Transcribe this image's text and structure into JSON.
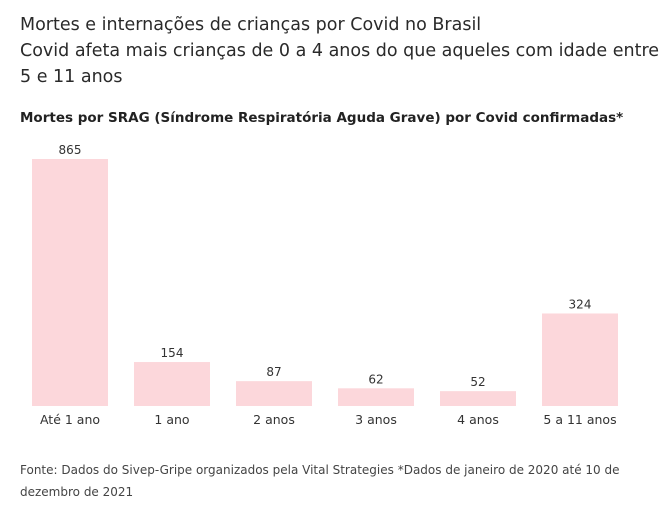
{
  "header": {
    "title": "Mortes e internações de crianças por Covid no Brasil",
    "subtitle": "Covid afeta mais crianças de 0 a 4 anos do que aqueles com idade entre 5 e 11 anos"
  },
  "chart_data": {
    "type": "bar",
    "title": "Mortes por SRAG (Síndrome Respiratória Aguda Grave) por Covid confirmadas*",
    "categories": [
      "Até 1 ano",
      "1 ano",
      "2 anos",
      "3 anos",
      "4 anos",
      "5 a 11 anos"
    ],
    "values": [
      865,
      154,
      87,
      62,
      52,
      324
    ],
    "xlabel": "",
    "ylabel": "",
    "ylim": [
      0,
      865
    ],
    "grid": false,
    "bar_color": "#fcd7db"
  },
  "footer": {
    "source": "Fonte: Dados do Sivep-Gripe organizados pela Vital Strategies *Dados de janeiro de 2020 até 10 de dezembro de 2021"
  }
}
